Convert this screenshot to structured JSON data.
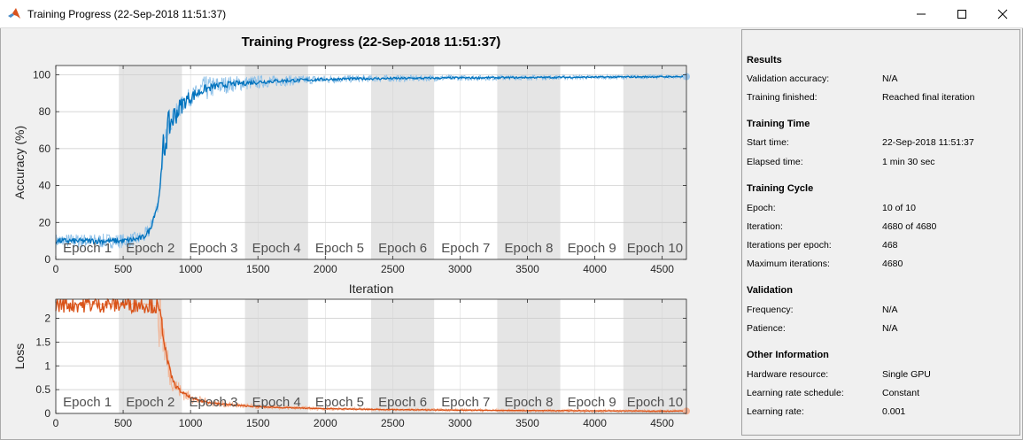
{
  "window": {
    "title": "Training Progress (22-Sep-2018 11:51:37)",
    "icons": {
      "app": "matlab-logo-icon",
      "minimize": "minimize-icon",
      "maximize": "maximize-icon",
      "close": "close-icon"
    }
  },
  "colors": {
    "accuracy_line": "#0072BD",
    "accuracy_raw": "#8fc1e8",
    "loss_line": "#D95319",
    "loss_raw": "#f2b08f",
    "epoch_shade": "#e5e5e5",
    "final_marker_acc": "#9ec9ee",
    "final_marker_loss": "#f6b699"
  },
  "chart_data": [
    {
      "type": "line",
      "title": "Training Progress (22-Sep-2018 11:51:37)",
      "xlabel": "Iteration",
      "ylabel": "Accuracy (%)",
      "xlim": [
        0,
        4680
      ],
      "ylim": [
        0,
        105
      ],
      "xticks": [
        0,
        500,
        1000,
        1500,
        2000,
        2500,
        3000,
        3500,
        4000,
        4500
      ],
      "yticks": [
        0,
        20,
        40,
        60,
        80,
        100
      ],
      "grid": true,
      "epochs": {
        "labels": [
          "Epoch 1",
          "Epoch 2",
          "Epoch 3",
          "Epoch 4",
          "Epoch 5",
          "Epoch 6",
          "Epoch 7",
          "Epoch 8",
          "Epoch 9",
          "Epoch 10"
        ],
        "boundaries": [
          0,
          468,
          936,
          1404,
          1872,
          2340,
          2808,
          3276,
          3744,
          4212,
          4680
        ]
      },
      "series": [
        {
          "x": [
            0,
            100,
            200,
            300,
            400,
            500,
            600,
            650,
            700,
            730,
            760,
            780,
            800,
            820,
            850,
            880,
            920,
            960,
            1000,
            1050,
            1100,
            1150,
            1200,
            1300,
            1400,
            1500,
            1600,
            1700,
            1800,
            2000,
            2200,
            2500,
            3000,
            3500,
            4000,
            4500,
            4680
          ],
          "y": [
            10,
            10,
            10,
            10,
            10,
            10,
            11,
            12,
            16,
            24,
            30,
            45,
            58,
            68,
            74,
            78,
            82,
            86,
            88,
            90,
            92,
            93,
            94,
            95,
            95.5,
            96,
            96.5,
            96.8,
            97,
            97.5,
            97.8,
            98,
            98.3,
            98.5,
            98.7,
            98.9,
            99
          ]
        }
      ]
    },
    {
      "type": "line",
      "xlabel": "",
      "ylabel": "Loss",
      "xlim": [
        0,
        4680
      ],
      "ylim": [
        0,
        2.4
      ],
      "xticks": [
        0,
        500,
        1000,
        1500,
        2000,
        2500,
        3000,
        3500,
        4000,
        4500
      ],
      "yticks": [
        0,
        0.5,
        1,
        1.5,
        2
      ],
      "ytick_labels": [
        "0",
        "0.5",
        "1",
        "1.5",
        "2"
      ],
      "grid": true,
      "epochs": {
        "labels": [
          "Epoch 1",
          "Epoch 2",
          "Epoch 3",
          "Epoch 4",
          "Epoch 5",
          "Epoch 6",
          "Epoch 7",
          "Epoch 8",
          "Epoch 9",
          "Epoch 10"
        ],
        "boundaries": [
          0,
          468,
          936,
          1404,
          1872,
          2340,
          2808,
          3276,
          3744,
          4212,
          4680
        ]
      },
      "series": [
        {
          "x": [
            0,
            200,
            400,
            600,
            700,
            750,
            780,
            800,
            820,
            850,
            880,
            920,
            960,
            1000,
            1050,
            1100,
            1200,
            1300,
            1400,
            1500,
            1700,
            2000,
            2500,
            3000,
            3500,
            4000,
            4500,
            4680
          ],
          "y": [
            2.3,
            2.3,
            2.3,
            2.3,
            2.29,
            2.25,
            2.0,
            1.65,
            1.2,
            0.85,
            0.62,
            0.48,
            0.4,
            0.33,
            0.28,
            0.25,
            0.21,
            0.18,
            0.16,
            0.14,
            0.12,
            0.1,
            0.08,
            0.07,
            0.06,
            0.055,
            0.05,
            0.05
          ]
        }
      ]
    }
  ],
  "info": {
    "results": {
      "heading": "Results",
      "validation_accuracy_label": "Validation accuracy:",
      "validation_accuracy_value": "N/A",
      "training_finished_label": "Training finished:",
      "training_finished_value": "Reached final iteration"
    },
    "training_time": {
      "heading": "Training Time",
      "start_time_label": "Start time:",
      "start_time_value": "22-Sep-2018 11:51:37",
      "elapsed_time_label": "Elapsed time:",
      "elapsed_time_value": "1 min 30 sec"
    },
    "training_cycle": {
      "heading": "Training Cycle",
      "epoch_label": "Epoch:",
      "epoch_value": "10 of 10",
      "iteration_label": "Iteration:",
      "iteration_value": "4680 of 4680",
      "iterations_per_epoch_label": "Iterations per epoch:",
      "iterations_per_epoch_value": "468",
      "max_iterations_label": "Maximum iterations:",
      "max_iterations_value": "4680"
    },
    "validation": {
      "heading": "Validation",
      "frequency_label": "Frequency:",
      "frequency_value": "N/A",
      "patience_label": "Patience:",
      "patience_value": "N/A"
    },
    "other": {
      "heading": "Other Information",
      "hardware_label": "Hardware resource:",
      "hardware_value": "Single GPU",
      "lr_schedule_label": "Learning rate schedule:",
      "lr_schedule_value": "Constant",
      "lr_label": "Learning rate:",
      "lr_value": "0.001"
    }
  }
}
